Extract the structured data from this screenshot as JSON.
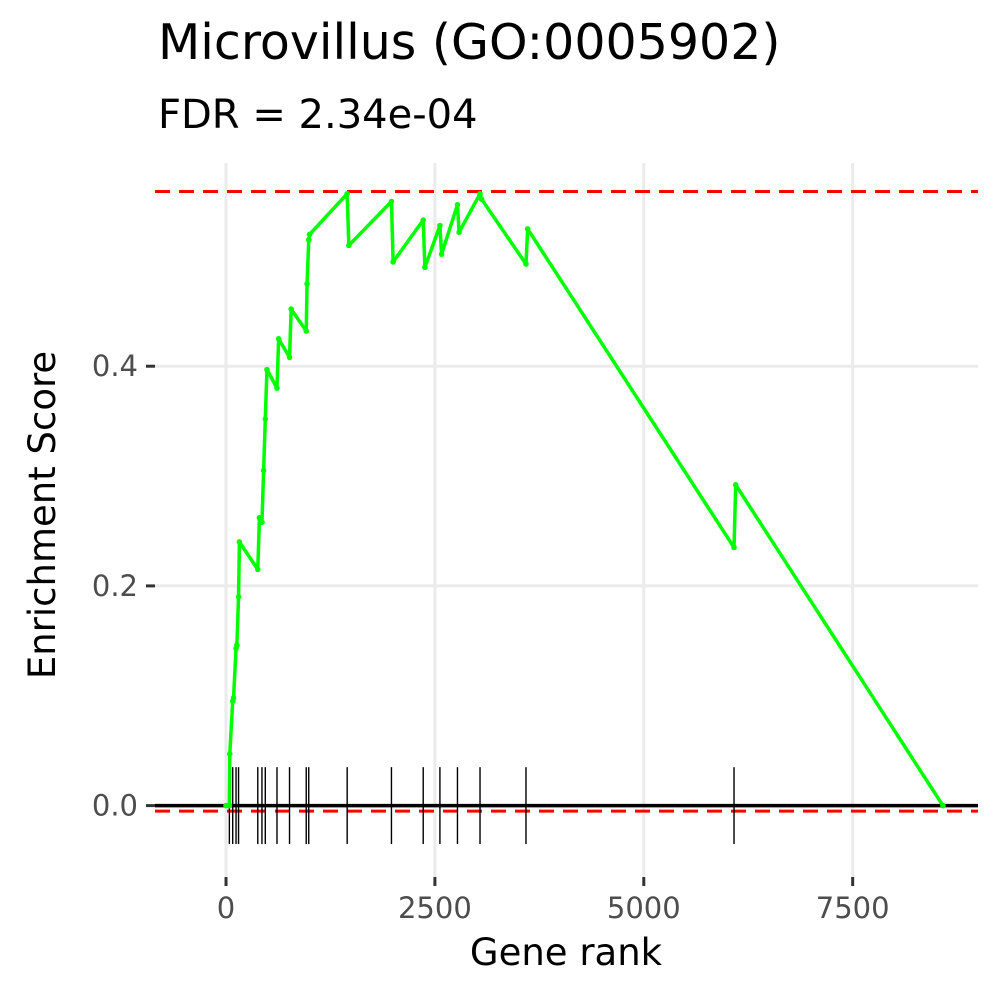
{
  "chart_data": {
    "type": "line",
    "title": "Microvillus (GO:0005902)",
    "subtitle": "FDR = 2.34e-04",
    "xlabel": "Gene rank",
    "ylabel": "Enrichment Score",
    "xlim": [
      -850,
      9000
    ],
    "ylim": [
      -0.065,
      0.585
    ],
    "x_ticks": [
      0,
      2500,
      5000,
      7500
    ],
    "x_tick_labels": [
      "0",
      "2500",
      "5000",
      "7500"
    ],
    "y_ticks": [
      0.0,
      0.2,
      0.4
    ],
    "y_tick_labels": [
      "0.0",
      "0.2",
      "0.4"
    ],
    "grid": true,
    "reference_lines": [
      {
        "y": 0.559,
        "style": "dashed",
        "color": "#ff0000"
      },
      {
        "y": -0.005,
        "style": "dashed",
        "color": "#ff0000"
      },
      {
        "y": 0.0,
        "style": "solid",
        "color": "#000000"
      }
    ],
    "series": [
      {
        "color": "#00ff00",
        "x": [
          0,
          40,
          45,
          80,
          90,
          120,
          130,
          150,
          160,
          380,
          400,
          430,
          450,
          470,
          490,
          610,
          630,
          760,
          780,
          960,
          970,
          990,
          1000,
          1450,
          1470,
          1980,
          2000,
          2360,
          2380,
          2560,
          2580,
          2770,
          2790,
          3040,
          3060,
          3590,
          3610,
          6080,
          6100,
          8580
        ],
        "y": [
          0.0,
          0.0,
          0.047,
          0.095,
          0.098,
          0.143,
          0.146,
          0.19,
          0.24,
          0.215,
          0.262,
          0.258,
          0.305,
          0.352,
          0.397,
          0.38,
          0.425,
          0.408,
          0.452,
          0.432,
          0.475,
          0.515,
          0.52,
          0.557,
          0.51,
          0.55,
          0.495,
          0.533,
          0.49,
          0.528,
          0.502,
          0.547,
          0.522,
          0.557,
          0.552,
          0.493,
          0.525,
          0.235,
          0.292,
          0.0
        ]
      }
    ],
    "hit_ranks": [
      40,
      80,
      120,
      150,
      380,
      430,
      470,
      610,
      760,
      960,
      990,
      1450,
      1980,
      2360,
      2560,
      2770,
      3040,
      3590,
      6080
    ]
  }
}
